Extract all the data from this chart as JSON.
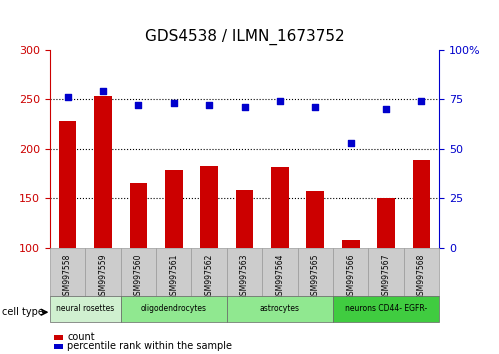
{
  "title": "GDS4538 / ILMN_1673752",
  "samples": [
    "GSM997558",
    "GSM997559",
    "GSM997560",
    "GSM997561",
    "GSM997562",
    "GSM997563",
    "GSM997564",
    "GSM997565",
    "GSM997566",
    "GSM997567",
    "GSM997568"
  ],
  "counts": [
    228,
    253,
    165,
    178,
    183,
    158,
    182,
    157,
    108,
    150,
    189
  ],
  "percentiles": [
    76,
    79,
    72,
    73,
    72,
    71,
    74,
    71,
    53,
    70,
    74
  ],
  "cell_types": [
    {
      "label": "neural rosettes",
      "start": 0,
      "end": 2,
      "color": "#d0f0d0"
    },
    {
      "label": "oligodendrocytes",
      "start": 2,
      "end": 5,
      "color": "#90e890"
    },
    {
      "label": "astrocytes",
      "start": 5,
      "end": 8,
      "color": "#90e890"
    },
    {
      "label": "neurons CD44- EGFR-",
      "start": 8,
      "end": 11,
      "color": "#40cc40"
    }
  ],
  "ylim_left": [
    100,
    300
  ],
  "ylim_right": [
    0,
    100
  ],
  "yticks_left": [
    100,
    150,
    200,
    250,
    300
  ],
  "yticks_right": [
    0,
    25,
    50,
    75,
    100
  ],
  "ytick_right_labels": [
    "0",
    "25",
    "50",
    "75",
    "100%"
  ],
  "bar_color": "#cc0000",
  "dot_color": "#0000cc",
  "legend_count_color": "#cc0000",
  "legend_dot_color": "#0000cc",
  "bar_width": 0.5,
  "sample_bg_color": "#cccccc",
  "sample_border_color": "#999999",
  "cell_type_border_color": "#666666"
}
